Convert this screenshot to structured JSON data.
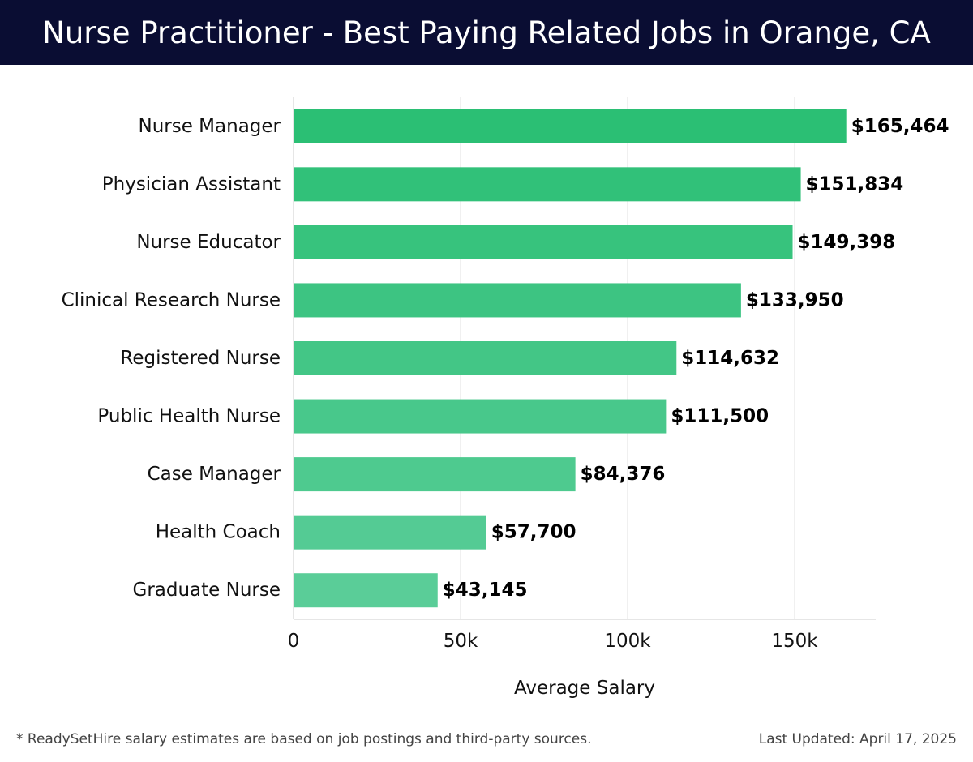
{
  "header": {
    "title": "Nurse Practitioner - Best Paying Related Jobs in Orange, CA"
  },
  "chart_data": {
    "type": "bar",
    "orientation": "horizontal",
    "categories": [
      "Nurse Manager",
      "Physician Assistant",
      "Nurse Educator",
      "Clinical Research Nurse",
      "Registered Nurse",
      "Public Health Nurse",
      "Case Manager",
      "Health Coach",
      "Graduate Nurse"
    ],
    "values": [
      165464,
      151834,
      149398,
      133950,
      114632,
      111500,
      84376,
      57700,
      43145
    ],
    "value_labels": [
      "$165,464",
      "$151,834",
      "$149,398",
      "$133,950",
      "$114,632",
      "$111,500",
      "$84,376",
      "$57,700",
      "$43,145"
    ],
    "xlabel": "Average Salary",
    "ylabel": "",
    "xlim": [
      0,
      175000
    ],
    "xticks": [
      0,
      50000,
      100000,
      150000
    ],
    "xtick_labels": [
      "0",
      "50k",
      "100k",
      "150k"
    ],
    "grid": "vertical",
    "colors": {
      "bar_top": "#2bbf74",
      "bar_bottom": "#5acd98",
      "grid": "#e0e0e0",
      "axis": "#cccccc"
    }
  },
  "footer": {
    "note": "* ReadySetHire salary estimates are based on job postings and third-party sources.",
    "updated": "Last Updated: April 17, 2025"
  }
}
